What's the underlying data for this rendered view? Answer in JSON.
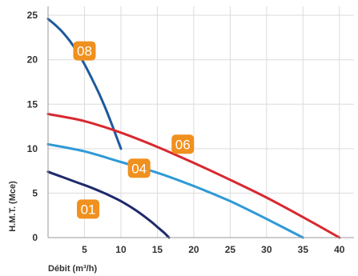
{
  "chart_data": {
    "type": "line",
    "xlabel": "Débit (m³/h)",
    "ylabel": "H.M.T. (Mce)",
    "xlim": [
      0,
      42
    ],
    "ylim": [
      0,
      26
    ],
    "x_ticks": [
      5,
      10,
      15,
      20,
      25,
      30,
      35,
      40
    ],
    "y_ticks": [
      0,
      5,
      10,
      15,
      20,
      25
    ],
    "grid": "vertical and horizontal",
    "legend": "labels on curves",
    "badge_color": "#F0901E",
    "series": [
      {
        "name": "08",
        "color": "#1E5A9C",
        "x": [
          0,
          1,
          2,
          3,
          4,
          5,
          6,
          7,
          8,
          9,
          10
        ],
        "y": [
          24.6,
          23.9,
          23.1,
          22.1,
          20.9,
          19.5,
          17.9,
          16.2,
          14.3,
          12.2,
          10.0
        ],
        "label_at": {
          "x": 5,
          "y": 21
        }
      },
      {
        "name": "06",
        "color": "#D8282F",
        "x": [
          0,
          5,
          10,
          15,
          20,
          25,
          30,
          35,
          40
        ],
        "y": [
          13.9,
          13.1,
          11.8,
          10.2,
          8.4,
          6.5,
          4.5,
          2.3,
          0
        ],
        "label_at": {
          "x": 18.5,
          "y": 10.5
        }
      },
      {
        "name": "04",
        "color": "#2F9AD6",
        "x": [
          0,
          5,
          10,
          15,
          20,
          25,
          30,
          35
        ],
        "y": [
          10.5,
          9.7,
          8.5,
          7.3,
          5.8,
          4.1,
          2.1,
          0
        ],
        "label_at": {
          "x": 12.5,
          "y": 7.8
        }
      },
      {
        "name": "01",
        "color": "#1F2A6B",
        "x": [
          0,
          2,
          4,
          6,
          8,
          10,
          12,
          14,
          15,
          16,
          16.6
        ],
        "y": [
          7.4,
          6.8,
          6.2,
          5.6,
          4.9,
          4.1,
          3.1,
          1.9,
          1.2,
          0.5,
          0
        ],
        "label_at": {
          "x": 5.5,
          "y": 3.2
        }
      }
    ]
  }
}
